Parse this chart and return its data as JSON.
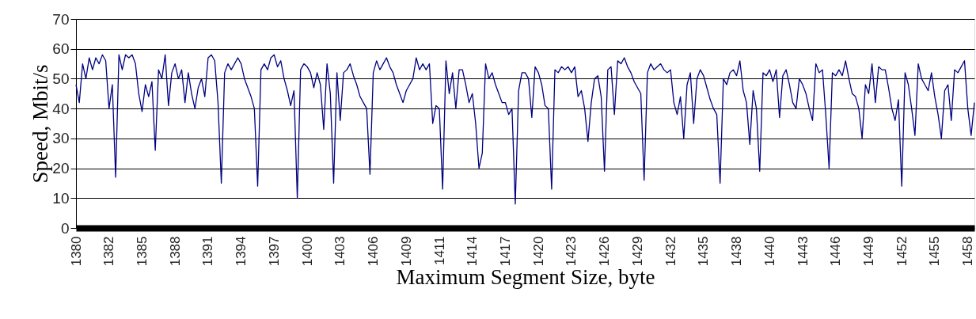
{
  "chart_data": {
    "type": "line",
    "xlabel": "Maximum Segment Size, byte",
    "ylabel": "Speed, Mbit/s",
    "ylim": [
      0,
      70
    ],
    "yticks": [
      0,
      10,
      20,
      30,
      40,
      50,
      60,
      70
    ],
    "grid": "y",
    "marker": "none",
    "line_style": "solid",
    "categories": [
      "1380",
      null,
      null,
      null,
      null,
      null,
      null,
      null,
      null,
      null,
      "1382",
      null,
      null,
      null,
      null,
      null,
      null,
      null,
      null,
      null,
      "1385",
      null,
      null,
      null,
      null,
      null,
      null,
      null,
      null,
      null,
      "1388",
      null,
      null,
      null,
      null,
      null,
      null,
      null,
      null,
      null,
      "1391",
      null,
      null,
      null,
      null,
      null,
      null,
      null,
      null,
      null,
      "1394",
      null,
      null,
      null,
      null,
      null,
      null,
      null,
      null,
      null,
      "1397",
      null,
      null,
      null,
      null,
      null,
      null,
      null,
      null,
      null,
      "1400",
      null,
      null,
      null,
      null,
      null,
      null,
      null,
      null,
      null,
      "1403",
      null,
      null,
      null,
      null,
      null,
      null,
      null,
      null,
      null,
      "1406",
      null,
      null,
      null,
      null,
      null,
      null,
      null,
      null,
      null,
      "1409",
      null,
      null,
      null,
      null,
      null,
      null,
      null,
      null,
      null,
      "1411",
      null,
      null,
      null,
      null,
      null,
      null,
      null,
      null,
      null,
      "1414",
      null,
      null,
      null,
      null,
      null,
      null,
      null,
      null,
      null,
      "1417",
      null,
      null,
      null,
      null,
      null,
      null,
      null,
      null,
      null,
      "1420",
      null,
      null,
      null,
      null,
      null,
      null,
      null,
      null,
      null,
      "1423",
      null,
      null,
      null,
      null,
      null,
      null,
      null,
      null,
      null,
      "1426",
      null,
      null,
      null,
      null,
      null,
      null,
      null,
      null,
      null,
      "1429",
      null,
      null,
      null,
      null,
      null,
      null,
      null,
      null,
      null,
      "1432",
      null,
      null,
      null,
      null,
      null,
      null,
      null,
      null,
      null,
      "1435",
      null,
      null,
      null,
      null,
      null,
      null,
      null,
      null,
      null,
      "1438",
      null,
      null,
      null,
      null,
      null,
      null,
      null,
      null,
      null,
      "1440",
      null,
      null,
      null,
      null,
      null,
      null,
      null,
      null,
      null,
      "1443",
      null,
      null,
      null,
      null,
      null,
      null,
      null,
      null,
      null,
      "1446",
      null,
      null,
      null,
      null,
      null,
      null,
      null,
      null,
      null,
      "1449",
      null,
      null,
      null,
      null,
      null,
      null,
      null,
      null,
      null,
      "1452",
      null,
      null,
      null,
      null,
      null,
      null,
      null,
      null,
      null,
      "1455",
      null,
      null,
      null,
      null,
      null,
      null,
      null,
      null,
      null,
      "1458",
      null,
      null
    ],
    "series": [
      {
        "color": "#000080",
        "values": [
          48,
          42,
          55,
          50,
          57,
          53,
          57,
          55,
          58,
          56,
          40,
          48,
          17,
          58,
          53,
          58,
          57,
          58,
          55,
          45,
          39,
          48,
          44,
          49,
          26,
          53,
          50,
          58,
          41,
          52,
          55,
          50,
          53,
          42,
          52,
          45,
          40,
          47,
          50,
          44,
          57,
          58,
          56,
          42,
          15,
          52,
          55,
          53,
          55,
          57,
          55,
          50,
          47,
          44,
          40,
          14,
          53,
          55,
          53,
          57,
          58,
          54,
          56,
          50,
          46,
          41,
          46,
          10,
          53,
          55,
          54,
          52,
          47,
          52,
          48,
          33,
          55,
          45,
          15,
          52,
          36,
          52,
          53,
          55,
          51,
          48,
          44,
          42,
          40,
          18,
          52,
          56,
          53,
          55,
          57,
          54,
          52,
          48,
          45,
          42,
          46,
          48,
          50,
          57,
          53,
          55,
          53,
          55,
          35,
          41,
          40,
          13,
          56,
          45,
          52,
          40,
          53,
          53,
          48,
          42,
          45,
          35,
          20,
          25,
          55,
          50,
          52,
          48,
          45,
          42,
          42,
          38,
          40,
          8,
          46,
          52,
          52,
          50,
          37,
          54,
          52,
          48,
          41,
          40,
          13,
          53,
          52,
          54,
          53,
          54,
          52,
          54,
          44,
          46,
          40,
          29,
          42,
          50,
          51,
          44,
          19,
          53,
          54,
          38,
          56,
          55,
          57,
          54,
          52,
          49,
          47,
          45,
          16,
          52,
          55,
          53,
          54,
          55,
          53,
          52,
          53,
          42,
          38,
          44,
          30,
          48,
          52,
          35,
          50,
          53,
          51,
          47,
          43,
          40,
          38,
          15,
          50,
          48,
          52,
          53,
          51,
          56,
          46,
          42,
          28,
          46,
          40,
          19,
          52,
          51,
          53,
          49,
          53,
          37,
          51,
          53,
          48,
          42,
          40,
          50,
          48,
          45,
          40,
          36,
          55,
          52,
          53,
          38,
          20,
          52,
          51,
          53,
          51,
          56,
          50,
          45,
          44,
          40,
          30,
          48,
          45,
          55,
          42,
          54,
          53,
          53,
          47,
          40,
          36,
          43,
          14,
          52,
          48,
          40,
          31,
          55,
          50,
          48,
          46,
          52,
          44,
          38,
          30,
          46,
          48,
          36,
          53,
          52,
          54,
          56,
          40,
          31,
          42
        ]
      }
    ]
  }
}
